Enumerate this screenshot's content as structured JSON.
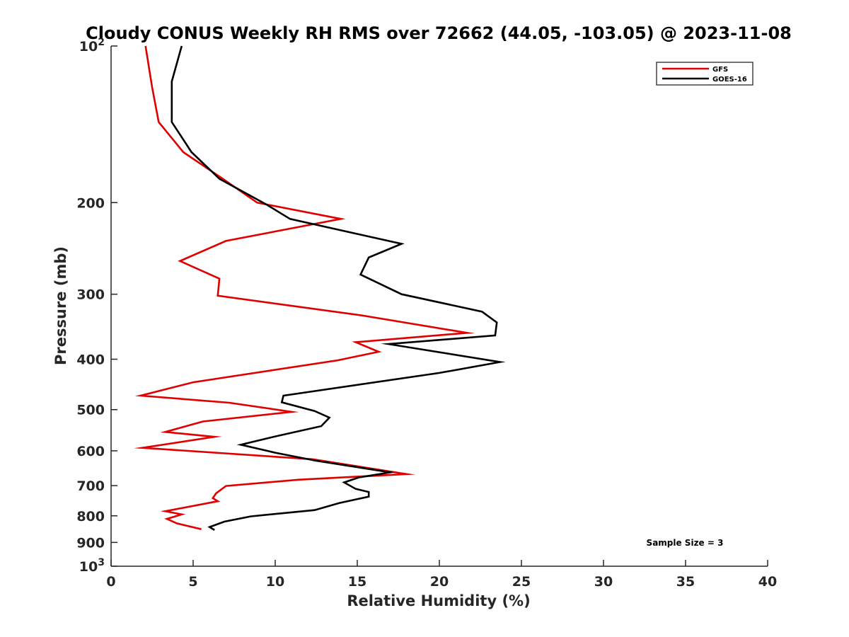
{
  "chart_data": {
    "type": "line",
    "title": "Cloudy CONUS Weekly RH RMS over 72662 (44.05, -103.05) @ 2023-11-08",
    "xlabel": "Relative Humidity (%)",
    "ylabel": "Pressure (mb)",
    "xlim": [
      0,
      40
    ],
    "ylim": [
      100,
      1000
    ],
    "yscale": "log",
    "y_reversed": true,
    "grid": false,
    "legend_position": "top-right",
    "x_ticks": [
      {
        "value": 0,
        "label": "0"
      },
      {
        "value": 5,
        "label": "5"
      },
      {
        "value": 10,
        "label": "10"
      },
      {
        "value": 15,
        "label": "15"
      },
      {
        "value": 20,
        "label": "20"
      },
      {
        "value": 25,
        "label": "25"
      },
      {
        "value": 30,
        "label": "30"
      },
      {
        "value": 35,
        "label": "35"
      },
      {
        "value": 40,
        "label": "40"
      }
    ],
    "y_ticks": [
      {
        "value": 100,
        "base": "10",
        "exp": "2"
      },
      {
        "value": 200,
        "label": "200"
      },
      {
        "value": 300,
        "label": "300"
      },
      {
        "value": 400,
        "label": "400"
      },
      {
        "value": 500,
        "label": "500"
      },
      {
        "value": 600,
        "label": "600"
      },
      {
        "value": 700,
        "label": "700"
      },
      {
        "value": 800,
        "label": "800"
      },
      {
        "value": 900,
        "label": "900"
      },
      {
        "value": 1000,
        "base": "10",
        "exp": "3"
      }
    ],
    "series": [
      {
        "name": "GFS",
        "color": "#e00000",
        "points": [
          [
            2.1,
            100
          ],
          [
            2.5,
            120
          ],
          [
            2.9,
            140
          ],
          [
            4.4,
            160
          ],
          [
            6.8,
            180
          ],
          [
            8.9,
            200
          ],
          [
            14.0,
            215
          ],
          [
            7.0,
            237
          ],
          [
            4.2,
            259
          ],
          [
            6.6,
            280
          ],
          [
            6.5,
            302
          ],
          [
            15.4,
            330
          ],
          [
            21.7,
            356
          ],
          [
            14.9,
            371
          ],
          [
            16.3,
            387
          ],
          [
            13.8,
            402
          ],
          [
            5.0,
            443
          ],
          [
            1.8,
            470
          ],
          [
            7.2,
            485
          ],
          [
            11.0,
            505
          ],
          [
            5.6,
            527
          ],
          [
            3.3,
            552
          ],
          [
            6.3,
            564
          ],
          [
            1.9,
            592
          ],
          [
            12.3,
            623
          ],
          [
            18.0,
            665
          ],
          [
            11.4,
            682
          ],
          [
            7.0,
            701
          ],
          [
            6.4,
            724
          ],
          [
            6.2,
            740
          ],
          [
            6.5,
            750
          ],
          [
            3.3,
            784
          ],
          [
            4.3,
            795
          ],
          [
            3.4,
            811
          ],
          [
            4.0,
            827
          ],
          [
            5.5,
            849
          ]
        ]
      },
      {
        "name": "GOES-16",
        "color": "#000000",
        "points": [
          [
            4.3,
            100
          ],
          [
            3.7,
            117
          ],
          [
            3.7,
            140
          ],
          [
            4.9,
            160
          ],
          [
            6.6,
            180
          ],
          [
            9.5,
            202
          ],
          [
            10.9,
            215
          ],
          [
            17.7,
            240
          ],
          [
            15.7,
            255
          ],
          [
            15.2,
            275
          ],
          [
            17.7,
            300
          ],
          [
            22.6,
            324
          ],
          [
            23.5,
            340
          ],
          [
            23.4,
            360
          ],
          [
            16.9,
            374
          ],
          [
            23.7,
            405
          ],
          [
            20.0,
            425
          ],
          [
            10.5,
            470
          ],
          [
            10.4,
            484
          ],
          [
            12.4,
            503
          ],
          [
            13.3,
            518
          ],
          [
            12.8,
            538
          ],
          [
            10.1,
            562
          ],
          [
            7.9,
            584
          ],
          [
            10.0,
            605
          ],
          [
            12.5,
            627
          ],
          [
            17.0,
            660
          ],
          [
            15.1,
            675
          ],
          [
            14.2,
            690
          ],
          [
            14.9,
            710
          ],
          [
            15.7,
            720
          ],
          [
            15.7,
            735
          ],
          [
            13.9,
            756
          ],
          [
            12.4,
            780
          ],
          [
            8.5,
            802
          ],
          [
            6.9,
            821
          ],
          [
            6.0,
            841
          ],
          [
            6.3,
            852
          ]
        ]
      }
    ],
    "annotation": "Sample Size = 3"
  }
}
